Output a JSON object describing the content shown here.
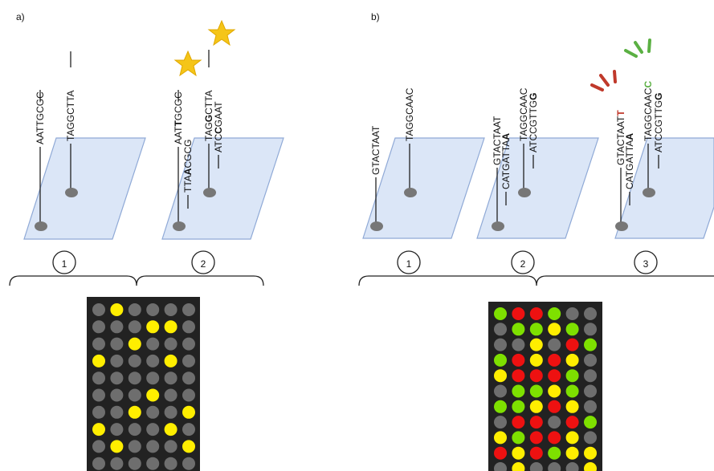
{
  "panel_a": {
    "label": "a)",
    "site_numbers": [
      "1",
      "2"
    ],
    "sequences": [
      [
        "AATTGCGC"
      ],
      [
        "TAGGCTTA"
      ],
      [
        "AAT",
        "T",
        "GCGC"
      ],
      [
        "TTA",
        "A",
        "CGCG"
      ],
      [
        "TAG",
        "G",
        "CTTA"
      ],
      [
        "ATC",
        "C",
        "GAAT"
      ]
    ]
  },
  "panel_b": {
    "label": "b)",
    "site_numbers": [
      "1",
      "2",
      "3"
    ],
    "sequences": [
      [
        "GTACTAAT"
      ],
      [
        "TAGGCAAC"
      ],
      [
        "GTACTAAT"
      ],
      [
        "CATGATTA",
        "A"
      ],
      [
        "TAGGCAAC"
      ],
      [
        "ATCCGTTG",
        "G"
      ],
      [
        "GTACTAAT",
        "T"
      ],
      [
        "CATGATTA",
        "A"
      ],
      [
        "TAGGCAAC",
        "C"
      ],
      [
        "ATCCGTTG",
        "G"
      ]
    ]
  }
}
